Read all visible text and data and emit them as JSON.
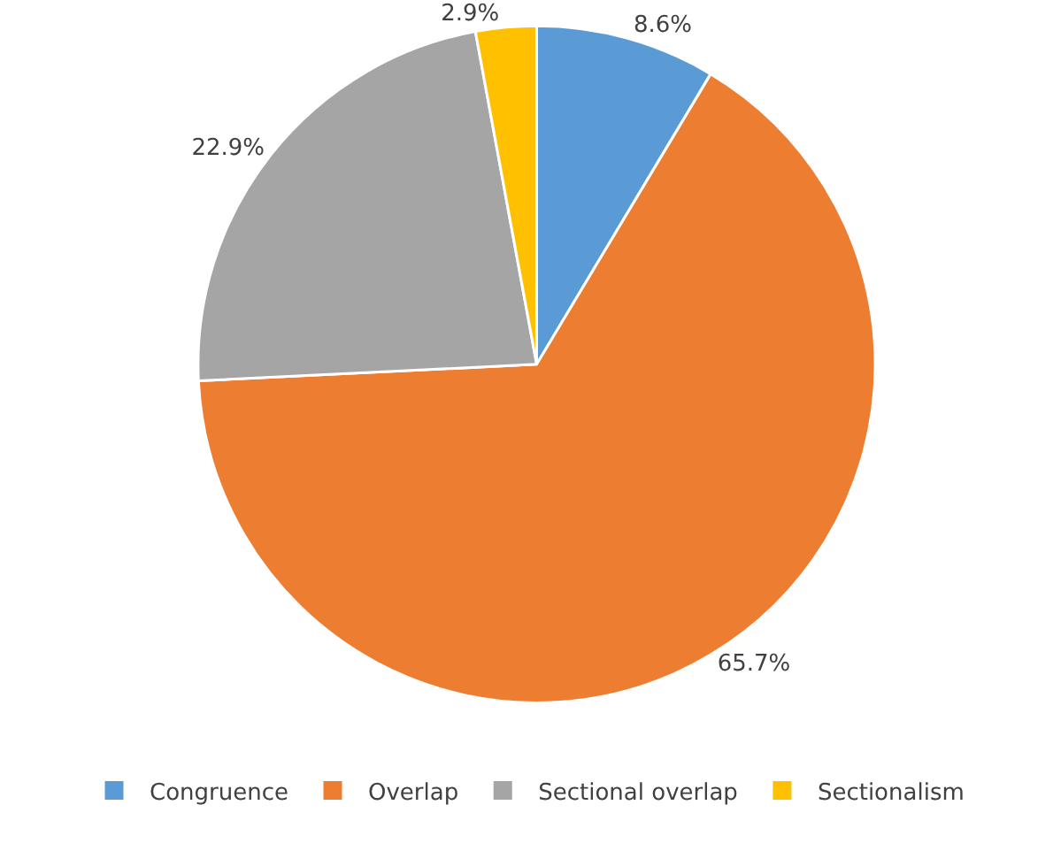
{
  "chart_data": {
    "type": "pie",
    "categories": [
      "Congruence",
      "Overlap",
      "Sectional overlap",
      "Sectionalism"
    ],
    "values": [
      8.6,
      65.7,
      22.9,
      2.9
    ],
    "value_labels": [
      "8.6%",
      "65.7%",
      "22.9%",
      "2.9%"
    ],
    "colors": [
      "#5b9bd5",
      "#ed7d31",
      "#a5a5a5",
      "#ffc000"
    ],
    "legend": "bottom"
  }
}
